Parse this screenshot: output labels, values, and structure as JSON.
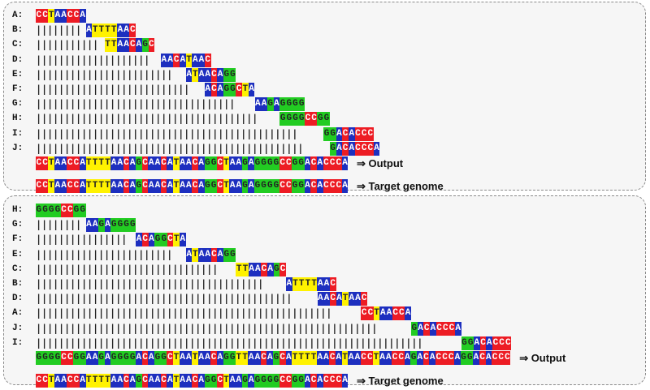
{
  "top_panel": {
    "rows": [
      {
        "label": "A:",
        "offset": 0,
        "seq": "CCTAACCA"
      },
      {
        "label": "B:",
        "offset": 8,
        "seq": "ATTTTAAC"
      },
      {
        "label": "C:",
        "offset": 11,
        "seq": "TTAACAGC"
      },
      {
        "label": "D:",
        "offset": 20,
        "seq": "AACATAAC"
      },
      {
        "label": "E:",
        "offset": 24,
        "seq": "ATAACAGG"
      },
      {
        "label": "F:",
        "offset": 27,
        "seq": "ACAGGCTA"
      },
      {
        "label": "G:",
        "offset": 35,
        "seq": "AAGAGGGG"
      },
      {
        "label": "H:",
        "offset": 39,
        "seq": "GGGGCCGG"
      },
      {
        "label": "I:",
        "offset": 46,
        "seq": "GGACACCC"
      },
      {
        "label": "J:",
        "offset": 47,
        "seq": "GACACCCA"
      }
    ],
    "output_seq": "CCTAACCATTTTAACAGCAACATAACAGGCTAAGAGGGGCCGGACACCCA",
    "output_label": "⇒ Output",
    "target_seq": "CCTAACCATTTTAACAGCAACATAACAGGCTAAGAGGGGCCGGACACCCA",
    "target_label": "⇒ Target genome"
  },
  "bottom_panel": {
    "rows": [
      {
        "label": "H:",
        "offset": 0,
        "seq": "GGGGCCGG"
      },
      {
        "label": "G:",
        "offset": 8,
        "seq": "AAGAGGGG"
      },
      {
        "label": "F:",
        "offset": 16,
        "seq": "ACAGGCTA"
      },
      {
        "label": "E:",
        "offset": 24,
        "seq": "ATAACAGG"
      },
      {
        "label": "C:",
        "offset": 32,
        "seq": "TTAACAGC"
      },
      {
        "label": "B:",
        "offset": 40,
        "seq": "ATTTTAAC"
      },
      {
        "label": "D:",
        "offset": 45,
        "seq": "AACATAAC"
      },
      {
        "label": "A:",
        "offset": 52,
        "seq": "CCTAACCA"
      },
      {
        "label": "J:",
        "offset": 60,
        "seq": "GACACCCA"
      },
      {
        "label": "I:",
        "offset": 68,
        "seq": "GGACACCC"
      }
    ],
    "output_seq": "GGGGCCGGAAGAGGGGACAGGCTAATAACAGGTTAACAGCATTTTAACATAACCTAACCAGACACCCAGGACACCC",
    "output_label": "⇒ Output",
    "target_seq": "CCTAACCATTTTAACAGCAACATAACAGGCTAAGAGGGGCCGGACACCCA",
    "target_label": "⇒ Target genome"
  },
  "colors": {
    "A": "#ed1c24",
    "C": "#ed1c24",
    "T": "#fff200",
    "G": "#22cc22"
  }
}
